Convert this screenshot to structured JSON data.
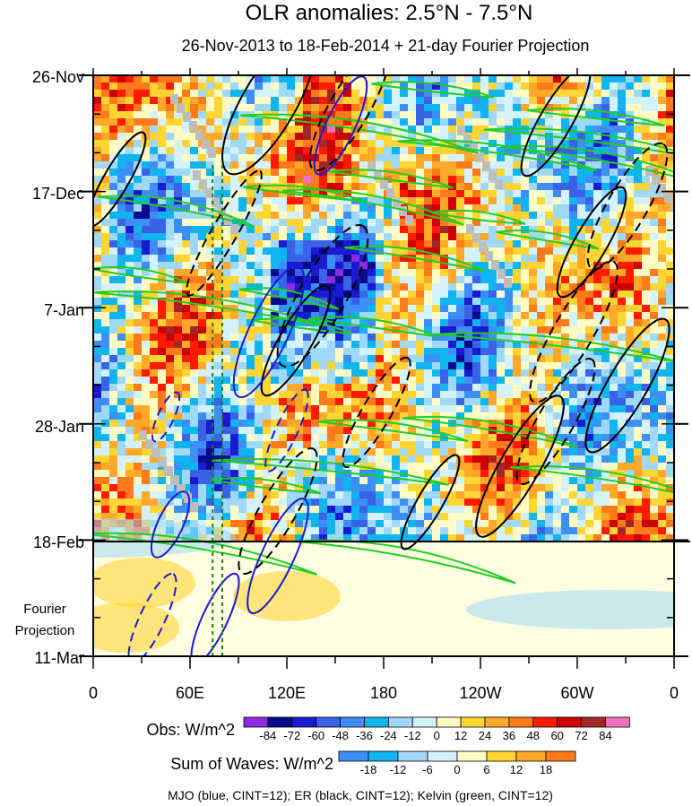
{
  "chart_data": {
    "type": "heatmap",
    "title": "OLR anomalies: 2.5°N - 7.5°N",
    "subtitle": "26-Nov-2013 to 18-Feb-2014 + 21-day Fourier Projection",
    "y_tick_labels": [
      "26-Nov",
      "17-Dec",
      "7-Jan",
      "28-Jan",
      "18-Feb",
      "11-Mar"
    ],
    "x_tick_labels": [
      "0",
      "60E",
      "120E",
      "180",
      "120W",
      "60W",
      "0"
    ],
    "x_range_deg_east": [
      0,
      360
    ],
    "y_range_days": [
      0,
      105
    ],
    "projection_start_day": 84,
    "side_label_line1": "Fourier",
    "side_label_line2": "Projection",
    "obs_legend": {
      "label": "Obs: W/m^2",
      "levels": [
        "-84",
        "-72",
        "-60",
        "-48",
        "-36",
        "-24",
        "-12",
        "0",
        "12",
        "24",
        "36",
        "48",
        "60",
        "72",
        "84"
      ],
      "colors": [
        "#8b2be2",
        "#0a0a8c",
        "#1a1ad2",
        "#3a62e6",
        "#3d8ef5",
        "#10b4ee",
        "#a0d8f7",
        "#d4f2fc",
        "#fffbc4",
        "#ffd534",
        "#ffa82a",
        "#ff7a1a",
        "#ff1a00",
        "#cc0000",
        "#a02828",
        "#f070c0"
      ]
    },
    "waves_legend": {
      "label": "Sum of Waves: W/m^2",
      "levels": [
        "-18",
        "-12",
        "-6",
        "0",
        "6",
        "12",
        "18"
      ],
      "colors": [
        "#3d8ef5",
        "#10b4ee",
        "#a0d8f7",
        "#d4f2fc",
        "#fffbc4",
        "#ffd534",
        "#ffa82a",
        "#ff7a1a"
      ]
    },
    "footer": "MJO (blue, CINT=12); ER (black, CINT=12); Kelvin (green, CINT=12)",
    "contour_colors": {
      "mjo": "#1a1ad2",
      "er": "#000000",
      "kelvin": "#22cc22",
      "grey_mask": "#bdbdbd"
    },
    "reference_longitudes_deg_east": [
      74,
      80
    ]
  }
}
